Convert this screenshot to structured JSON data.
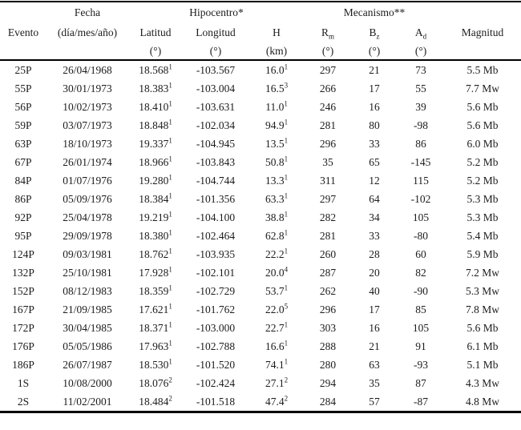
{
  "page": {
    "background": "#ffffff",
    "text_color": "#1c1c1c",
    "rule_color": "#000000"
  },
  "table": {
    "group_row": {
      "fecha": "Fecha",
      "hipocentro": "Hipocentro*",
      "mecanismo": "Mecanismo**"
    },
    "columns": {
      "evento": {
        "label": "Evento",
        "unit": ""
      },
      "fecha": {
        "label": "(día/mes/año)",
        "unit": ""
      },
      "latitud": {
        "label": "Latitud",
        "unit": "(°)"
      },
      "longitud": {
        "label": "Longitud",
        "unit": "(°)"
      },
      "h": {
        "label": "H",
        "unit": "(km)"
      },
      "rm": {
        "base": "R",
        "sub": "m",
        "unit": "(°)"
      },
      "bz": {
        "base": "B",
        "sub": "z",
        "unit": "(°)"
      },
      "ad": {
        "base": "A",
        "sub": "d",
        "unit": "(°)"
      },
      "magnitud": {
        "label": "Magnitud",
        "unit": ""
      }
    },
    "rows": [
      {
        "evento": "25P",
        "fecha": "26/04/1968",
        "latitud": "18.568",
        "latitud_sup": "1",
        "longitud": "-103.567",
        "h": "16.0",
        "h_sup": "1",
        "rm": "297",
        "bz": "21",
        "ad": "73",
        "magnitud": "5.5 Mb"
      },
      {
        "evento": "55P",
        "fecha": "30/01/1973",
        "latitud": "18.383",
        "latitud_sup": "1",
        "longitud": "-103.004",
        "h": "16.5",
        "h_sup": "3",
        "rm": "266",
        "bz": "17",
        "ad": "55",
        "magnitud": "7.7 Mw"
      },
      {
        "evento": "56P",
        "fecha": "10/02/1973",
        "latitud": "18.410",
        "latitud_sup": "1",
        "longitud": "-103.631",
        "h": "11.0",
        "h_sup": "1",
        "rm": "246",
        "bz": "16",
        "ad": "39",
        "magnitud": "5.6 Mb"
      },
      {
        "evento": "59P",
        "fecha": "03/07/1973",
        "latitud": "18.848",
        "latitud_sup": "1",
        "longitud": "-102.034",
        "h": "94.9",
        "h_sup": "1",
        "rm": "281",
        "bz": "80",
        "ad": "-98",
        "magnitud": "5.6 Mb"
      },
      {
        "evento": "63P",
        "fecha": "18/10/1973",
        "latitud": "19.337",
        "latitud_sup": "1",
        "longitud": "-104.945",
        "h": "13.5",
        "h_sup": "1",
        "rm": "296",
        "bz": "33",
        "ad": "86",
        "magnitud": "6.0 Mb"
      },
      {
        "evento": "67P",
        "fecha": "26/01/1974",
        "latitud": "18.966",
        "latitud_sup": "1",
        "longitud": "-103.843",
        "h": "50.8",
        "h_sup": "1",
        "rm": "35",
        "bz": "65",
        "ad": "-145",
        "magnitud": "5.2 Mb"
      },
      {
        "evento": "84P",
        "fecha": "01/07/1976",
        "latitud": "19.280",
        "latitud_sup": "1",
        "longitud": "-104.744",
        "h": "13.3",
        "h_sup": "1",
        "rm": "311",
        "bz": "12",
        "ad": "115",
        "magnitud": "5.2 Mb"
      },
      {
        "evento": "86P",
        "fecha": "05/09/1976",
        "latitud": "18.384",
        "latitud_sup": "1",
        "longitud": "-101.356",
        "h": "63.3",
        "h_sup": "1",
        "rm": "297",
        "bz": "64",
        "ad": "-102",
        "magnitud": "5.3 Mb"
      },
      {
        "evento": "92P",
        "fecha": "25/04/1978",
        "latitud": "19.219",
        "latitud_sup": "1",
        "longitud": "-104.100",
        "h": "38.8",
        "h_sup": "1",
        "rm": "282",
        "bz": "34",
        "ad": "105",
        "magnitud": "5.3 Mb"
      },
      {
        "evento": "95P",
        "fecha": "29/09/1978",
        "latitud": "18.380",
        "latitud_sup": "1",
        "longitud": "-102.464",
        "h": "62.8",
        "h_sup": "1",
        "rm": "281",
        "bz": "33",
        "ad": "-80",
        "magnitud": "5.4 Mb"
      },
      {
        "evento": "124P",
        "fecha": "09/03/1981",
        "latitud": "18.762",
        "latitud_sup": "1",
        "longitud": "-103.935",
        "h": "22.2",
        "h_sup": "1",
        "rm": "260",
        "bz": "28",
        "ad": "60",
        "magnitud": "5.9 Mb"
      },
      {
        "evento": "132P",
        "fecha": "25/10/1981",
        "latitud": "17.928",
        "latitud_sup": "1",
        "longitud": "-102.101",
        "h": "20.0",
        "h_sup": "4",
        "rm": "287",
        "bz": "20",
        "ad": "82",
        "magnitud": "7.2 Mw"
      },
      {
        "evento": "152P",
        "fecha": "08/12/1983",
        "latitud": "18.359",
        "latitud_sup": "1",
        "longitud": "-102.729",
        "h": "53.7",
        "h_sup": "1",
        "rm": "262",
        "bz": "40",
        "ad": "-90",
        "magnitud": "5.3 Mw"
      },
      {
        "evento": "167P",
        "fecha": "21/09/1985",
        "latitud": "17.621",
        "latitud_sup": "1",
        "longitud": "-101.762",
        "h": "22.0",
        "h_sup": "5",
        "rm": "296",
        "bz": "17",
        "ad": "85",
        "magnitud": "7.8 Mw"
      },
      {
        "evento": "172P",
        "fecha": "30/04/1985",
        "latitud": "18.371",
        "latitud_sup": "1",
        "longitud": "-103.000",
        "h": "22.7",
        "h_sup": "1",
        "rm": "303",
        "bz": "16",
        "ad": "105",
        "magnitud": "5.6 Mb"
      },
      {
        "evento": "176P",
        "fecha": "05/05/1986",
        "latitud": "17.963",
        "latitud_sup": "1",
        "longitud": "-102.788",
        "h": "16.6",
        "h_sup": "1",
        "rm": "288",
        "bz": "21",
        "ad": "91",
        "magnitud": "6.1 Mb"
      },
      {
        "evento": "186P",
        "fecha": "26/07/1987",
        "latitud": "18.530",
        "latitud_sup": "1",
        "longitud": "-101.520",
        "h": "74.1",
        "h_sup": "1",
        "rm": "280",
        "bz": "63",
        "ad": "-93",
        "magnitud": "5.1 Mb"
      },
      {
        "evento": "1S",
        "fecha": "10/08/2000",
        "latitud": "18.076",
        "latitud_sup": "2",
        "longitud": "-102.424",
        "h": "27.1",
        "h_sup": "2",
        "rm": "294",
        "bz": "35",
        "ad": "87",
        "magnitud": "4.3 Mw"
      },
      {
        "evento": "2S",
        "fecha": "11/02/2001",
        "latitud": "18.484",
        "latitud_sup": "2",
        "longitud": "-101.518",
        "h": "47.4",
        "h_sup": "2",
        "rm": "284",
        "bz": "57",
        "ad": "-87",
        "magnitud": "4.8 Mw"
      }
    ]
  }
}
